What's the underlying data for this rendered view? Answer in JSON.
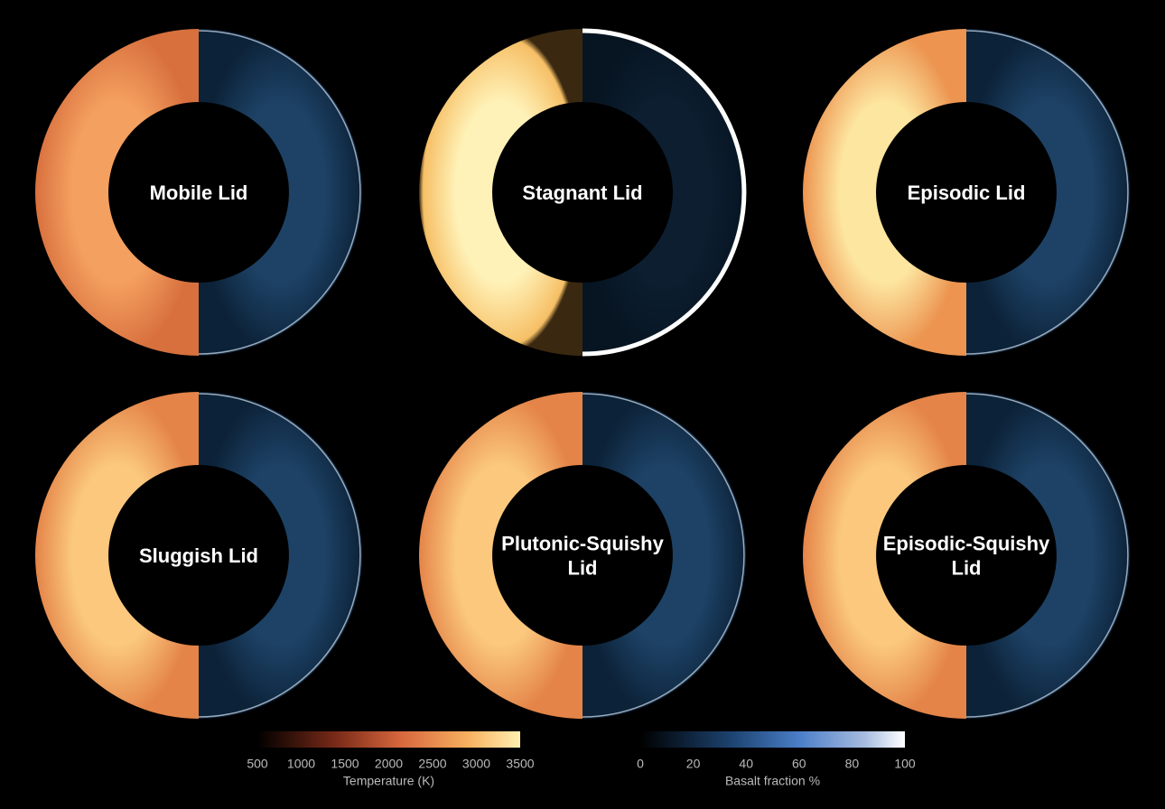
{
  "panels": [
    {
      "label": [
        "Mobile Lid"
      ]
    },
    {
      "label": [
        "Stagnant Lid"
      ]
    },
    {
      "label": [
        "Episodic Lid"
      ]
    },
    {
      "label": [
        "Sluggish Lid"
      ]
    },
    {
      "label": [
        "Plutonic-Squishy",
        "Lid"
      ]
    },
    {
      "label": [
        "Episodic-Squishy",
        "Lid"
      ]
    }
  ],
  "colorbars": [
    {
      "title": "Temperature (K)",
      "ticks": [
        500,
        1000,
        1500,
        2000,
        2500,
        3000,
        3500
      ]
    },
    {
      "title": "Basalt fraction %",
      "ticks": [
        0,
        20,
        40,
        60,
        80,
        100
      ]
    }
  ]
}
